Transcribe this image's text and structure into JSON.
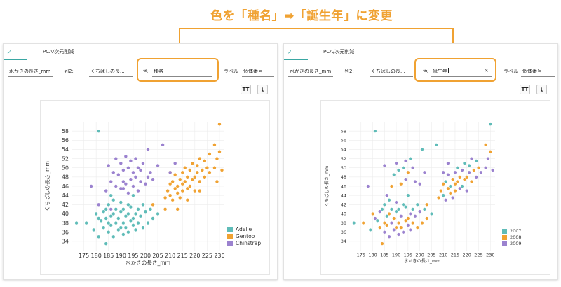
{
  "headline": "色を「種名」➡「誕生年」に変更",
  "colors": {
    "accent": "#f0a232",
    "tab_active": "#3aa7a3"
  },
  "icons": {
    "text_size": "text-size-icon",
    "download": "download-icon",
    "clear": "clear-icon"
  },
  "tool_labels": {
    "text_size": "TT",
    "download": "⤓"
  },
  "left_panel": {
    "tabs": [
      {
        "label": "フ"
      },
      {
        "label": "PCA/次元削減"
      }
    ],
    "fields": {
      "x_value": "水かきの長さ_mm",
      "col2_label": "列2:",
      "col2_value": "くちばしの長...",
      "color_label": "色",
      "color_value": "種名",
      "label_label": "ラベル",
      "label_value": "個体番号"
    }
  },
  "right_panel": {
    "tabs": [
      {
        "label": "フ"
      },
      {
        "label": "PCA/次元削減"
      }
    ],
    "fields": {
      "x_value": "水かきの長さ_mm",
      "col2_label": "列2:",
      "col2_value": "くちばしの長...",
      "color_label": "色",
      "color_value": "誕生年",
      "clear_glyph": "×",
      "label_label": "ラベル",
      "label_value": "個体番号"
    }
  },
  "chart_data": [
    {
      "type": "scatter",
      "xlabel": "水かきの長さ_mm",
      "ylabel": "くちばしの長さ_mm",
      "xlim": [
        170,
        232
      ],
      "ylim": [
        32,
        60
      ],
      "xticks": [
        175,
        180,
        185,
        190,
        195,
        200,
        205,
        210,
        215,
        220,
        225,
        230
      ],
      "yticks": [
        34,
        36,
        38,
        40,
        42,
        44,
        46,
        48,
        50,
        52,
        54,
        56,
        58
      ],
      "legend_position": "bottom-right",
      "grid": true,
      "series": [
        {
          "name": "Adelie",
          "color": "#5fbcb8",
          "points": [
            [
              172,
              38
            ],
            [
              176,
              38
            ],
            [
              179,
              36.5
            ],
            [
              180,
              40
            ],
            [
              181,
              39
            ],
            [
              181,
              35
            ],
            [
              182,
              38.5
            ],
            [
              183,
              37
            ],
            [
              183,
              40.5
            ],
            [
              184,
              39
            ],
            [
              184,
              41
            ],
            [
              185,
              36
            ],
            [
              185,
              38
            ],
            [
              185,
              42
            ],
            [
              186,
              37.5
            ],
            [
              186,
              39.5
            ],
            [
              187,
              35
            ],
            [
              187,
              40
            ],
            [
              187,
              43
            ],
            [
              188,
              38
            ],
            [
              188,
              41
            ],
            [
              189,
              36.5
            ],
            [
              189,
              39
            ],
            [
              190,
              37
            ],
            [
              190,
              40.5
            ],
            [
              190,
              42.5
            ],
            [
              191,
              38
            ],
            [
              191,
              35.5
            ],
            [
              191,
              41
            ],
            [
              192,
              39.5
            ],
            [
              192,
              37
            ],
            [
              193,
              40
            ],
            [
              193,
              42
            ],
            [
              193,
              36
            ],
            [
              194,
              38.5
            ],
            [
              194,
              41.5
            ],
            [
              195,
              37.5
            ],
            [
              195,
              39
            ],
            [
              195,
              44
            ],
            [
              196,
              40
            ],
            [
              196,
              36.5
            ],
            [
              197,
              38
            ],
            [
              197,
              41
            ],
            [
              198,
              39.5
            ],
            [
              199,
              37
            ],
            [
              199,
              42
            ],
            [
              200,
              40.5
            ],
            [
              201,
              38
            ],
            [
              202,
              41
            ],
            [
              203,
              39
            ],
            [
              205,
              40
            ],
            [
              181,
              58
            ],
            [
              184,
              33.5
            ],
            [
              186,
              44
            ]
          ]
        },
        {
          "name": "Gentoo",
          "color": "#f0a232",
          "points": [
            [
              203,
              42
            ],
            [
              208,
              43.5
            ],
            [
              208,
              41
            ],
            [
              209,
              45
            ],
            [
              210,
              44
            ],
            [
              210,
              46.5
            ],
            [
              211,
              47
            ],
            [
              211,
              43
            ],
            [
              212,
              45.5
            ],
            [
              212,
              48.5
            ],
            [
              213,
              44.5
            ],
            [
              213,
              46
            ],
            [
              214,
              47.5
            ],
            [
              214,
              43.5
            ],
            [
              215,
              45
            ],
            [
              215,
              49
            ],
            [
              215,
              46.5
            ],
            [
              216,
              47
            ],
            [
              216,
              50
            ],
            [
              217,
              45.5
            ],
            [
              217,
              48
            ],
            [
              218,
              46
            ],
            [
              218,
              49.5
            ],
            [
              219,
              47.5
            ],
            [
              219,
              51
            ],
            [
              220,
              48
            ],
            [
              220,
              45
            ],
            [
              221,
              49
            ],
            [
              221,
              50.5
            ],
            [
              222,
              47
            ],
            [
              222,
              52
            ],
            [
              223,
              49.5
            ],
            [
              224,
              48
            ],
            [
              224,
              51.5
            ],
            [
              225,
              50
            ],
            [
              226,
              49
            ],
            [
              228,
              50
            ],
            [
              228,
              55
            ],
            [
              229,
              52
            ],
            [
              230,
              53.5
            ],
            [
              230,
              59.5
            ],
            [
              231,
              49.5
            ],
            [
              229,
              47
            ],
            [
              213,
              41
            ],
            [
              210,
              49
            ],
            [
              222,
              45
            ],
            [
              226,
              53
            ],
            [
              217,
              43
            ]
          ]
        },
        {
          "name": "Chinstrap",
          "color": "#9b82cf",
          "points": [
            [
              178,
              46
            ],
            [
              181,
              42
            ],
            [
              184,
              45
            ],
            [
              185,
              50.5
            ],
            [
              186,
              47
            ],
            [
              187,
              49
            ],
            [
              188,
              46
            ],
            [
              188,
              52
            ],
            [
              189,
              48.5
            ],
            [
              190,
              45.5
            ],
            [
              190,
              51
            ],
            [
              191,
              47
            ],
            [
              191,
              49.5
            ],
            [
              192,
              46.5
            ],
            [
              192,
              52.5
            ],
            [
              193,
              50
            ],
            [
              193,
              44.5
            ],
            [
              194,
              47.5
            ],
            [
              194,
              51.5
            ],
            [
              195,
              46
            ],
            [
              195,
              49
            ],
            [
              196,
              48
            ],
            [
              196,
              52
            ],
            [
              197,
              45
            ],
            [
              197,
              50
            ],
            [
              198,
              47
            ],
            [
              198,
              49.5
            ],
            [
              199,
              51
            ],
            [
              200,
              46.5
            ],
            [
              201,
              48
            ],
            [
              201,
              54
            ],
            [
              202,
              49
            ],
            [
              203,
              47.5
            ],
            [
              205,
              50.5
            ],
            [
              207,
              55
            ],
            [
              210,
              49
            ],
            [
              212,
              51
            ],
            [
              191,
              45.5
            ],
            [
              186,
              41
            ]
          ]
        }
      ]
    },
    {
      "type": "scatter",
      "xlabel": "水かきの長さ_mm",
      "ylabel": "くちばしの長さ_mm",
      "xlim": [
        170,
        232
      ],
      "ylim": [
        32,
        60
      ],
      "xticks": [
        175,
        180,
        185,
        190,
        195,
        200,
        205,
        210,
        215,
        220,
        225,
        230
      ],
      "yticks": [
        34,
        36,
        38,
        40,
        42,
        44,
        46,
        48,
        50,
        52,
        54,
        56,
        58
      ],
      "legend_position": "bottom-right",
      "grid": true,
      "series": [
        {
          "name": "2007",
          "color": "#5fbcb8",
          "points": [
            [
              172,
              38
            ],
            [
              179,
              36.5
            ],
            [
              181,
              58
            ],
            [
              182,
              38.5
            ],
            [
              184,
              41
            ],
            [
              185,
              42
            ],
            [
              186,
              39.5
            ],
            [
              187,
              43
            ],
            [
              188,
              41
            ],
            [
              190,
              40.5
            ],
            [
              191,
              41
            ],
            [
              193,
              42
            ],
            [
              194,
              41.5
            ],
            [
              195,
              44
            ],
            [
              197,
              41
            ],
            [
              199,
              42
            ],
            [
              202,
              41
            ],
            [
              205,
              40
            ],
            [
              189,
              48.5
            ],
            [
              191,
              49.5
            ],
            [
              193,
              50
            ],
            [
              196,
              52
            ],
            [
              201,
              54
            ],
            [
              207,
              55
            ],
            [
              211,
              47
            ],
            [
              213,
              46
            ],
            [
              216,
              50
            ],
            [
              219,
              51
            ],
            [
              221,
              50.5
            ],
            [
              224,
              51.5
            ],
            [
              230,
              59.5
            ],
            [
              218,
              46
            ],
            [
              210,
              44
            ]
          ]
        },
        {
          "name": "2008",
          "color": "#f0a232",
          "points": [
            [
              176,
              38
            ],
            [
              180,
              40
            ],
            [
              183,
              37
            ],
            [
              185,
              38
            ],
            [
              186,
              37.5
            ],
            [
              187,
              40
            ],
            [
              189,
              39
            ],
            [
              190,
              37
            ],
            [
              191,
              38
            ],
            [
              192,
              37
            ],
            [
              194,
              38.5
            ],
            [
              195,
              39
            ],
            [
              197,
              38
            ],
            [
              199,
              37
            ],
            [
              201,
              38
            ],
            [
              203,
              39
            ],
            [
              184,
              33.5
            ],
            [
              203,
              42
            ],
            [
              208,
              43.5
            ],
            [
              209,
              45
            ],
            [
              210,
              46.5
            ],
            [
              212,
              45.5
            ],
            [
              213,
              44.5
            ],
            [
              214,
              47.5
            ],
            [
              215,
              45
            ],
            [
              215,
              46.5
            ],
            [
              216,
              47
            ],
            [
              217,
              48
            ],
            [
              219,
              47.5
            ],
            [
              220,
              48
            ],
            [
              222,
              47
            ],
            [
              223,
              49.5
            ],
            [
              225,
              50
            ],
            [
              228,
              55
            ],
            [
              230,
              53.5
            ],
            [
              188,
              46
            ],
            [
              192,
              46.5
            ],
            [
              195,
              49
            ]
          ]
        },
        {
          "name": "2009",
          "color": "#9b82cf",
          "points": [
            [
              178,
              46
            ],
            [
              181,
              39
            ],
            [
              183,
              40.5
            ],
            [
              185,
              36
            ],
            [
              187,
              35
            ],
            [
              188,
              38
            ],
            [
              189,
              36.5
            ],
            [
              190,
              42.5
            ],
            [
              191,
              35.5
            ],
            [
              192,
              39.5
            ],
            [
              193,
              36
            ],
            [
              194,
              47.5
            ],
            [
              195,
              37.5
            ],
            [
              196,
              40
            ],
            [
              196,
              36.5
            ],
            [
              198,
              39.5
            ],
            [
              200,
              40.5
            ],
            [
              186,
              44
            ],
            [
              185,
              50.5
            ],
            [
              190,
              51
            ],
            [
              194,
              51.5
            ],
            [
              197,
              50
            ],
            [
              198,
              47
            ],
            [
              200,
              46.5
            ],
            [
              202,
              49
            ],
            [
              210,
              49
            ],
            [
              212,
              51
            ],
            [
              211,
              43
            ],
            [
              212,
              48.5
            ],
            [
              214,
              43.5
            ],
            [
              215,
              49
            ],
            [
              217,
              45.5
            ],
            [
              218,
              49.5
            ],
            [
              220,
              45
            ],
            [
              221,
              49
            ],
            [
              222,
              52
            ],
            [
              224,
              48
            ],
            [
              226,
              49
            ],
            [
              228,
              50
            ],
            [
              229,
              52
            ],
            [
              231,
              49.5
            ]
          ]
        }
      ]
    }
  ]
}
